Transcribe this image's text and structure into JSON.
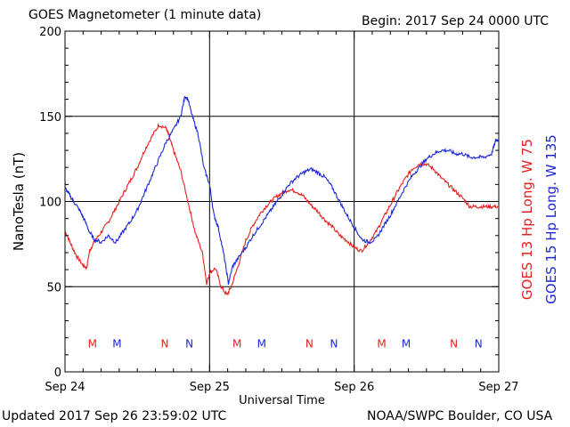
{
  "header": {
    "title": "GOES Magnetometer (1 minute data)",
    "begin": "Begin:  2017 Sep 24 0000 UTC"
  },
  "footer": {
    "updated": "Updated 2017 Sep 26 23:59:02 UTC",
    "source": "NOAA/SWPC Boulder, CO USA"
  },
  "colors": {
    "red": "#e8201e",
    "blue": "#1c28d8",
    "grid": "#000000"
  },
  "chart_data": {
    "type": "line",
    "xlabel": "Universal Time",
    "ylabel": "NanoTesla (nT)",
    "ylim": [
      0,
      200
    ],
    "yticks": [
      0,
      50,
      100,
      150,
      200
    ],
    "xlim_days": [
      0,
      3
    ],
    "xticks": [
      {
        "day": 0,
        "label": "Sep 24"
      },
      {
        "day": 1,
        "label": "Sep 25"
      },
      {
        "day": 2,
        "label": "Sep 26"
      },
      {
        "day": 3,
        "label": "Sep 27"
      }
    ],
    "grid": true,
    "series": [
      {
        "name": "GOES 13 Hp  Long. W 75",
        "color": "#e8201e",
        "x": [
          0,
          0.04,
          0.08,
          0.12,
          0.15,
          0.17,
          0.2,
          0.25,
          0.3,
          0.35,
          0.4,
          0.45,
          0.5,
          0.55,
          0.6,
          0.65,
          0.7,
          0.72,
          0.75,
          0.8,
          0.85,
          0.9,
          0.95,
          0.98,
          1.0,
          1.04,
          1.08,
          1.12,
          1.15,
          1.2,
          1.25,
          1.3,
          1.35,
          1.4,
          1.45,
          1.5,
          1.55,
          1.6,
          1.65,
          1.7,
          1.75,
          1.8,
          1.85,
          1.9,
          1.95,
          2.0,
          2.05,
          2.1,
          2.15,
          2.2,
          2.25,
          2.3,
          2.35,
          2.4,
          2.45,
          2.5,
          2.55,
          2.6,
          2.65,
          2.7,
          2.75,
          2.8,
          2.85,
          2.9,
          2.95,
          3.0
        ],
        "y": [
          83,
          75,
          68,
          63,
          61,
          71,
          76,
          82,
          88,
          96,
          104,
          112,
          120,
          130,
          138,
          145,
          143,
          138,
          130,
          118,
          100,
          82,
          70,
          52,
          58,
          61,
          50,
          45,
          50,
          63,
          77,
          86,
          93,
          98,
          102,
          105,
          107,
          106,
          103,
          98,
          94,
          89,
          85,
          80,
          77,
          73,
          71,
          76,
          82,
          90,
          98,
          106,
          113,
          119,
          122,
          122,
          119,
          114,
          110,
          106,
          102,
          97,
          97,
          97,
          97,
          97
        ]
      },
      {
        "name": "GOES 15 Hp  Long. W 135",
        "color": "#1c28d8",
        "x": [
          0,
          0.03,
          0.06,
          0.1,
          0.13,
          0.17,
          0.2,
          0.25,
          0.3,
          0.35,
          0.4,
          0.45,
          0.5,
          0.55,
          0.6,
          0.65,
          0.7,
          0.75,
          0.8,
          0.83,
          0.85,
          0.88,
          0.92,
          0.96,
          1.0,
          1.03,
          1.06,
          1.1,
          1.13,
          1.16,
          1.2,
          1.25,
          1.3,
          1.35,
          1.4,
          1.45,
          1.5,
          1.55,
          1.6,
          1.65,
          1.7,
          1.75,
          1.8,
          1.85,
          1.9,
          1.95,
          2.0,
          2.05,
          2.1,
          2.15,
          2.2,
          2.25,
          2.3,
          2.35,
          2.4,
          2.45,
          2.5,
          2.55,
          2.6,
          2.65,
          2.7,
          2.75,
          2.8,
          2.85,
          2.9,
          2.95,
          2.98,
          3.0
        ],
        "y": [
          108,
          104,
          100,
          95,
          90,
          82,
          78,
          76,
          80,
          76,
          82,
          88,
          95,
          105,
          115,
          125,
          135,
          142,
          150,
          162,
          160,
          150,
          140,
          120,
          110,
          92,
          85,
          68,
          52,
          62,
          67,
          73,
          80,
          86,
          92,
          98,
          104,
          110,
          114,
          117,
          119,
          117,
          114,
          108,
          100,
          92,
          85,
          78,
          76,
          78,
          85,
          92,
          100,
          108,
          115,
          120,
          125,
          128,
          130,
          130,
          128,
          128,
          126,
          126,
          126,
          128,
          136,
          136
        ]
      }
    ],
    "annotations": [
      {
        "text": "M",
        "day": 0.19,
        "color": "#e8201e"
      },
      {
        "text": "M",
        "day": 0.36,
        "color": "#1c28d8"
      },
      {
        "text": "N",
        "day": 0.69,
        "color": "#e8201e"
      },
      {
        "text": "N",
        "day": 0.86,
        "color": "#1c28d8"
      },
      {
        "text": "M",
        "day": 1.19,
        "color": "#e8201e"
      },
      {
        "text": "M",
        "day": 1.36,
        "color": "#1c28d8"
      },
      {
        "text": "N",
        "day": 1.69,
        "color": "#e8201e"
      },
      {
        "text": "N",
        "day": 1.86,
        "color": "#1c28d8"
      },
      {
        "text": "M",
        "day": 2.19,
        "color": "#e8201e"
      },
      {
        "text": "M",
        "day": 2.36,
        "color": "#1c28d8"
      },
      {
        "text": "N",
        "day": 2.69,
        "color": "#e8201e"
      },
      {
        "text": "N",
        "day": 2.86,
        "color": "#1c28d8"
      }
    ],
    "annotation_y": 17
  }
}
